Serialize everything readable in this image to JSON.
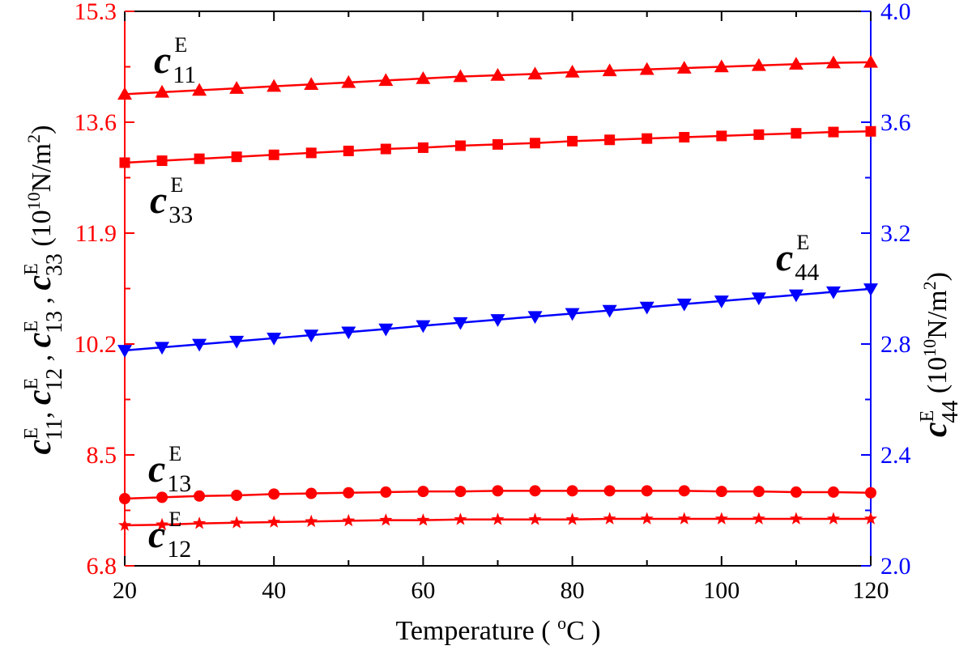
{
  "chart_data": {
    "type": "line",
    "x_axis": {
      "label_prefix": "Temperature ( ",
      "label_sup": "o",
      "label_suffix": "C )",
      "lim": [
        20,
        120
      ],
      "ticks": [
        20,
        40,
        60,
        80,
        100,
        120
      ]
    },
    "y_left": {
      "color": "#ff0000",
      "lim": [
        6.8,
        15.3
      ],
      "ticks": [
        "6.8",
        "8.5",
        "10.2",
        "11.9",
        "13.6",
        "15.3"
      ],
      "label_parts": [
        {
          "t": "c",
          "cls": "c"
        },
        {
          "t": "E",
          "cls": "sup"
        },
        {
          "t": "11",
          "cls": "sub"
        },
        {
          "t": ", ",
          "cls": "plain"
        },
        {
          "t": "c",
          "cls": "c"
        },
        {
          "t": "E",
          "cls": "sup"
        },
        {
          "t": "12",
          "cls": "sub"
        },
        {
          "t": " , ",
          "cls": "plain"
        },
        {
          "t": "c",
          "cls": "c"
        },
        {
          "t": "E",
          "cls": "sup"
        },
        {
          "t": "13",
          "cls": "sub"
        },
        {
          "t": " , ",
          "cls": "plain"
        },
        {
          "t": "c",
          "cls": "c"
        },
        {
          "t": "E",
          "cls": "sup"
        },
        {
          "t": "33",
          "cls": "sub"
        },
        {
          "t": " (10",
          "cls": "plain"
        },
        {
          "t": "10",
          "cls": "sup2"
        },
        {
          "t": "N/m",
          "cls": "plain"
        },
        {
          "t": "2",
          "cls": "sup2"
        },
        {
          "t": ")",
          "cls": "plain"
        }
      ]
    },
    "y_right": {
      "color": "#0000ff",
      "lim": [
        2.0,
        4.0
      ],
      "ticks": [
        "2.0",
        "2.4",
        "2.8",
        "3.2",
        "3.6",
        "4.0"
      ],
      "label_parts": [
        {
          "t": "c",
          "cls": "c"
        },
        {
          "t": "E",
          "cls": "sup"
        },
        {
          "t": "44",
          "cls": "sub"
        },
        {
          "t": " (10",
          "cls": "plain"
        },
        {
          "t": "10",
          "cls": "sup2"
        },
        {
          "t": "N/m",
          "cls": "plain"
        },
        {
          "t": "2",
          "cls": "sup2"
        },
        {
          "t": ")",
          "cls": "plain"
        }
      ]
    },
    "x": [
      20,
      25,
      30,
      35,
      40,
      45,
      50,
      55,
      60,
      65,
      70,
      75,
      80,
      85,
      90,
      95,
      100,
      105,
      110,
      115,
      120
    ],
    "series": [
      {
        "name": "c11",
        "label_sub": "11",
        "label_sup": "E",
        "axis": "left",
        "color": "#ff0000",
        "marker": "triangle-up",
        "values": [
          14.03,
          14.06,
          14.09,
          14.12,
          14.15,
          14.18,
          14.21,
          14.24,
          14.27,
          14.3,
          14.32,
          14.34,
          14.37,
          14.39,
          14.41,
          14.43,
          14.45,
          14.47,
          14.49,
          14.51,
          14.52
        ]
      },
      {
        "name": "c33",
        "label_sub": "33",
        "label_sup": "E",
        "axis": "left",
        "color": "#ff0000",
        "marker": "square",
        "values": [
          12.98,
          13.01,
          13.04,
          13.07,
          13.1,
          13.13,
          13.16,
          13.19,
          13.21,
          13.24,
          13.26,
          13.28,
          13.31,
          13.33,
          13.35,
          13.37,
          13.39,
          13.41,
          13.43,
          13.45,
          13.46
        ]
      },
      {
        "name": "c13",
        "label_sub": "13",
        "label_sup": "E",
        "axis": "left",
        "color": "#ff0000",
        "marker": "circle",
        "values": [
          7.83,
          7.85,
          7.87,
          7.88,
          7.9,
          7.91,
          7.92,
          7.93,
          7.94,
          7.94,
          7.95,
          7.95,
          7.95,
          7.95,
          7.95,
          7.95,
          7.94,
          7.94,
          7.93,
          7.93,
          7.92
        ]
      },
      {
        "name": "c12",
        "label_sub": "12",
        "label_sup": "E",
        "axis": "left",
        "color": "#ff0000",
        "marker": "star",
        "values": [
          7.42,
          7.43,
          7.45,
          7.46,
          7.47,
          7.48,
          7.49,
          7.5,
          7.5,
          7.51,
          7.51,
          7.51,
          7.51,
          7.52,
          7.52,
          7.52,
          7.52,
          7.52,
          7.52,
          7.52,
          7.52
        ]
      },
      {
        "name": "c44",
        "label_sub": "44",
        "label_sup": "E",
        "axis": "right",
        "color": "#0000ff",
        "marker": "triangle-down",
        "values": [
          2.777,
          2.788,
          2.799,
          2.81,
          2.821,
          2.832,
          2.843,
          2.854,
          2.866,
          2.877,
          2.888,
          2.899,
          2.91,
          2.921,
          2.933,
          2.944,
          2.955,
          2.966,
          2.977,
          2.988,
          2.999
        ]
      }
    ]
  }
}
